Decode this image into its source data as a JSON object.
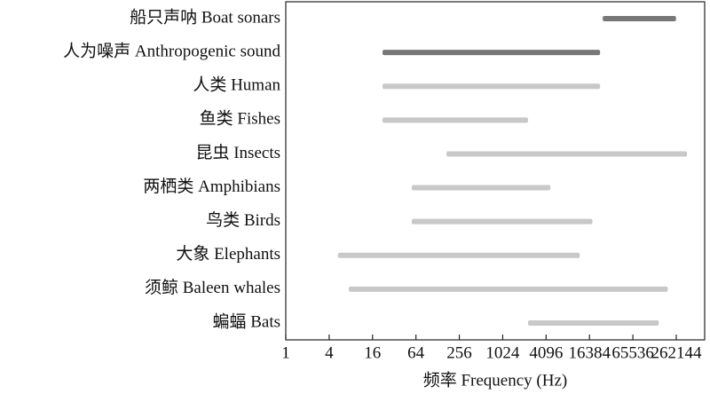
{
  "chart_data": {
    "type": "range-bar",
    "categories": [
      "船只声呐 Boat sonars",
      "人为噪声 Anthropogenic sound",
      "人类 Human",
      "鱼类 Fishes",
      "昆虫 Insects",
      "两栖类 Amphibians",
      "鸟类 Birds",
      "大象 Elephants",
      "须鲸 Baleen whales",
      "蝙蝠 Bats"
    ],
    "values": [
      [
        25000,
        260000
      ],
      [
        22,
        23000
      ],
      [
        22,
        23000
      ],
      [
        22,
        2300
      ],
      [
        170,
        370000
      ],
      [
        56,
        4700
      ],
      [
        56,
        18000
      ],
      [
        5.3,
        12000
      ],
      [
        7.5,
        200000
      ],
      [
        2300,
        150000
      ]
    ],
    "colors": [
      "#777777",
      "#777777",
      "#c8c8c8",
      "#c8c8c8",
      "#c8c8c8",
      "#c8c8c8",
      "#c8c8c8",
      "#c8c8c8",
      "#c8c8c8",
      "#c8c8c8"
    ],
    "xlabel": "频率 Frequency (Hz)",
    "xscale": "log2",
    "xlim": [
      1,
      650000
    ],
    "xticks": [
      1,
      4,
      16,
      64,
      256,
      1024,
      4096,
      16384,
      65536,
      262144
    ]
  }
}
